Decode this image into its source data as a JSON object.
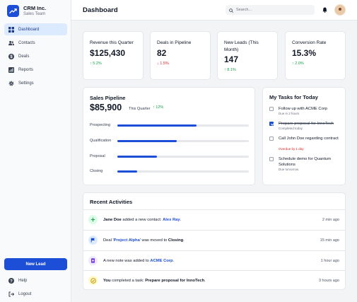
{
  "brand": {
    "name": "CRM Inc.",
    "subtitle": "Sales Team"
  },
  "nav": [
    {
      "label": "Dashboard",
      "icon": "grid-icon",
      "active": true
    },
    {
      "label": "Contacts",
      "icon": "users-icon"
    },
    {
      "label": "Deals",
      "icon": "dollar-icon"
    },
    {
      "label": "Reports",
      "icon": "chart-icon"
    },
    {
      "label": "Settings",
      "icon": "gear-icon"
    }
  ],
  "new_lead_label": "New Lead",
  "bottom_nav": [
    {
      "label": "Help",
      "icon": "help-icon"
    },
    {
      "label": "Logout",
      "icon": "logout-icon"
    }
  ],
  "header": {
    "title": "Dashboard",
    "search_placeholder": "Search..."
  },
  "stats": [
    {
      "label": "Revenue this Quarter",
      "value": "$125,430",
      "delta": "5.2%",
      "direction": "up"
    },
    {
      "label": "Deals in Pipeline",
      "value": "82",
      "delta": "1.5%",
      "direction": "down"
    },
    {
      "label": "New Leads (This Month)",
      "value": "147",
      "delta": "8.1%",
      "direction": "up"
    },
    {
      "label": "Conversion Rate",
      "value": "15.3%",
      "delta": "2.0%",
      "direction": "up"
    }
  ],
  "pipeline": {
    "title": "Sales Pipeline",
    "amount": "$85,900",
    "period": "This Quarter",
    "delta": "12%",
    "stages": [
      {
        "label": "Prospecting",
        "fill": 0.6
      },
      {
        "label": "Qualification",
        "fill": 0.45
      },
      {
        "label": "Proposal",
        "fill": 0.3
      },
      {
        "label": "Closing",
        "fill": 0.15
      }
    ]
  },
  "tasks": {
    "title": "My Tasks for Today",
    "items": [
      {
        "text": "Follow up with ACME Corp",
        "meta": "Due in 2 hours",
        "done": false,
        "overdue": false
      },
      {
        "text": "Prepare proposal for InnoTech",
        "meta": "Completed today",
        "done": true,
        "overdue": false
      },
      {
        "text": "Call John Doe regarding contract",
        "meta": "Overdue by 1 day",
        "done": false,
        "overdue": true
      },
      {
        "text": "Schedule demo for Quantum Solutions",
        "meta": "Due tomorrow",
        "done": false,
        "overdue": false
      }
    ]
  },
  "activities": {
    "title": "Recent Activities",
    "items": [
      {
        "icon": "plus-icon",
        "color": "#16a34a",
        "bg": "#dcfce7",
        "parts": [
          [
            "b",
            "Jane Doe"
          ],
          [
            "t",
            " added a new contact: "
          ],
          [
            "l",
            "Alex Ray"
          ],
          [
            "t",
            "."
          ]
        ],
        "time": "2 min ago"
      },
      {
        "icon": "flag-icon",
        "color": "#1d4ed8",
        "bg": "#dbeafe",
        "parts": [
          [
            "t",
            "Deal '"
          ],
          [
            "l",
            "Project Alpha"
          ],
          [
            "t",
            "' was moved to "
          ],
          [
            "b",
            "Closing"
          ],
          [
            "t",
            "."
          ]
        ],
        "time": "15 min ago"
      },
      {
        "icon": "note-icon",
        "color": "#7c3aed",
        "bg": "#ede9fe",
        "parts": [
          [
            "t",
            "A new note was added to "
          ],
          [
            "l",
            "ACME Corp"
          ],
          [
            "t",
            "."
          ]
        ],
        "time": "1 hour ago"
      },
      {
        "icon": "check-circle-icon",
        "color": "#ca8a04",
        "bg": "#fef9c3",
        "parts": [
          [
            "b",
            "You"
          ],
          [
            "t",
            " completed a task: "
          ],
          [
            "b",
            "Prepare proposal for InnoTech"
          ],
          [
            "t",
            "."
          ]
        ],
        "time": "3 hours ago"
      }
    ]
  }
}
